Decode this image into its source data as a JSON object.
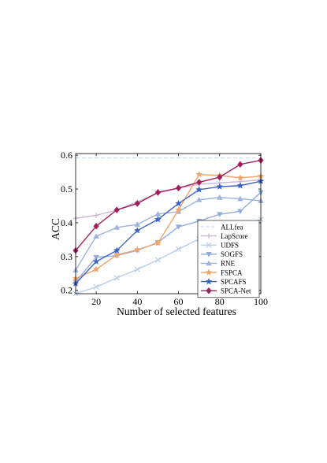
{
  "chart_data": {
    "type": "line",
    "xlabel": "Number of selected features",
    "ylabel": "ACC",
    "xlim": [
      10,
      100
    ],
    "ylim": [
      0.19,
      0.605
    ],
    "xticks": [
      20,
      40,
      60,
      80,
      100
    ],
    "yticks": [
      0.2,
      0.3,
      0.4,
      0.5,
      0.6
    ],
    "grid": false,
    "legend_position": "bottom-right",
    "x": [
      10,
      20,
      30,
      40,
      50,
      60,
      70,
      80,
      90,
      100
    ],
    "series": [
      {
        "name": "ALLfea",
        "style": "dashed",
        "marker": "none",
        "color": "#c5d7ec",
        "values": [
          0.592,
          0.592,
          0.592,
          0.592,
          0.592,
          0.592,
          0.592,
          0.592,
          0.592,
          0.592
        ]
      },
      {
        "name": "LapScore",
        "style": "solid",
        "marker": "plus",
        "color": "#c9b6d6",
        "values": [
          0.413,
          0.422,
          0.438,
          0.462,
          0.488,
          0.502,
          0.514,
          0.518,
          0.522,
          0.527
        ]
      },
      {
        "name": "UDFS",
        "style": "solid",
        "marker": "x",
        "color": "#b9cde9",
        "values": [
          0.19,
          0.21,
          0.237,
          0.262,
          0.29,
          0.322,
          0.352,
          0.372,
          0.39,
          0.41
        ]
      },
      {
        "name": "SOGFS",
        "style": "solid",
        "marker": "triangle-down",
        "color": "#93acd9",
        "values": [
          0.225,
          0.298,
          0.303,
          0.318,
          0.342,
          0.388,
          0.405,
          0.425,
          0.434,
          0.49
        ]
      },
      {
        "name": "RNE",
        "style": "solid",
        "marker": "triangle-up",
        "color": "#9db4dc",
        "values": [
          0.26,
          0.36,
          0.386,
          0.395,
          0.426,
          0.433,
          0.468,
          0.475,
          0.471,
          0.465
        ]
      },
      {
        "name": "FSPCA",
        "style": "solid",
        "marker": "star",
        "color": "#f0a56a",
        "values": [
          0.235,
          0.262,
          0.305,
          0.32,
          0.34,
          0.438,
          0.543,
          0.54,
          0.533,
          0.538
        ]
      },
      {
        "name": "SPCAFS",
        "style": "solid",
        "marker": "star",
        "color": "#3b64c6",
        "values": [
          0.22,
          0.285,
          0.318,
          0.377,
          0.41,
          0.457,
          0.498,
          0.507,
          0.51,
          0.523
        ]
      },
      {
        "name": "SPCA-Net",
        "style": "solid",
        "marker": "diamond",
        "color": "#a21e5a",
        "values": [
          0.318,
          0.39,
          0.438,
          0.457,
          0.49,
          0.503,
          0.52,
          0.535,
          0.573,
          0.585
        ]
      }
    ]
  }
}
